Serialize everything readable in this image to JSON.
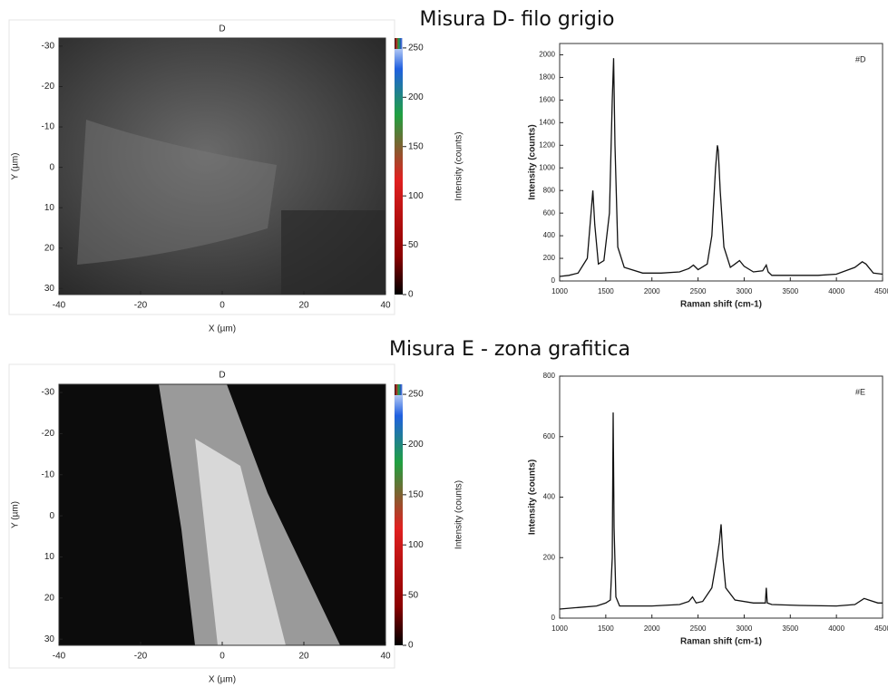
{
  "headings": [
    "Misura D- filo grigio",
    "Misura E - zona grafitica"
  ],
  "chart_data": [
    {
      "type": "image",
      "title": "D",
      "x_label": "X (µm)",
      "y_label": "Y (µm)",
      "colorbar_label": "Intensity (counts)",
      "xlim": [
        -40,
        40
      ],
      "xticks": [
        -40,
        -20,
        0,
        20,
        40
      ],
      "ylim": [
        -32,
        31.5
      ],
      "yticks": [
        -30,
        -20,
        -10,
        0,
        10,
        20,
        30
      ],
      "y_inverted": true,
      "clim": [
        0,
        260
      ],
      "cticks": [
        0,
        50,
        100,
        150,
        200,
        250
      ]
    },
    {
      "type": "line",
      "annotation": "#D",
      "x_label": "Raman shift (cm-1)",
      "y_label": "Intensity (counts)",
      "color": "#111111",
      "xlim": [
        1000,
        4500
      ],
      "xticks": [
        1000,
        1500,
        2000,
        2500,
        3000,
        3500,
        4000,
        4500
      ],
      "ylim": [
        0,
        2100
      ],
      "yticks": [
        0,
        200,
        400,
        600,
        800,
        1000,
        1200,
        1400,
        1600,
        1800,
        2000
      ],
      "x": [
        1000,
        1100,
        1200,
        1300,
        1340,
        1360,
        1380,
        1420,
        1480,
        1540,
        1570,
        1585,
        1600,
        1630,
        1700,
        1900,
        2100,
        2300,
        2400,
        2450,
        2500,
        2600,
        2650,
        2690,
        2710,
        2720,
        2740,
        2780,
        2850,
        2900,
        2950,
        3000,
        3100,
        3200,
        3240,
        3260,
        3300,
        3500,
        3800,
        4000,
        4200,
        4280,
        4320,
        4400,
        4500
      ],
      "values": [
        40,
        50,
        70,
        200,
        600,
        800,
        500,
        150,
        180,
        600,
        1600,
        1970,
        1200,
        300,
        120,
        70,
        70,
        80,
        110,
        140,
        100,
        150,
        400,
        1000,
        1200,
        1150,
        800,
        300,
        120,
        150,
        180,
        130,
        80,
        90,
        140,
        80,
        50,
        50,
        50,
        60,
        120,
        170,
        150,
        70,
        60
      ]
    },
    {
      "type": "image",
      "title": "D",
      "x_label": "X (µm)",
      "y_label": "Y (µm)",
      "colorbar_label": "Intensity (counts)",
      "xlim": [
        -40,
        40
      ],
      "xticks": [
        -40,
        -20,
        0,
        20,
        40
      ],
      "ylim": [
        -32,
        31.5
      ],
      "yticks": [
        -30,
        -20,
        -10,
        0,
        10,
        20,
        30
      ],
      "y_inverted": true,
      "clim": [
        0,
        260
      ],
      "cticks": [
        0,
        50,
        100,
        150,
        200,
        250
      ]
    },
    {
      "type": "line",
      "annotation": "#E",
      "x_label": "Raman shift (cm-1)",
      "y_label": "Intensity (counts)",
      "color": "#111111",
      "xlim": [
        1000,
        4500
      ],
      "xticks": [
        1000,
        1500,
        2000,
        2500,
        3000,
        3500,
        4000,
        4500
      ],
      "ylim": [
        0,
        800
      ],
      "yticks": [
        0,
        200,
        400,
        600,
        800
      ],
      "x": [
        1000,
        1200,
        1400,
        1500,
        1550,
        1570,
        1580,
        1590,
        1610,
        1650,
        1800,
        2000,
        2300,
        2400,
        2440,
        2480,
        2550,
        2650,
        2700,
        2730,
        2750,
        2770,
        2800,
        2900,
        3100,
        3230,
        3240,
        3250,
        3300,
        3600,
        4000,
        4200,
        4300,
        4350,
        4450,
        4500
      ],
      "values": [
        30,
        35,
        40,
        50,
        60,
        200,
        680,
        300,
        70,
        40,
        40,
        40,
        45,
        55,
        70,
        50,
        55,
        100,
        190,
        250,
        310,
        200,
        100,
        60,
        50,
        50,
        100,
        50,
        45,
        42,
        40,
        45,
        65,
        60,
        50,
        50
      ]
    }
  ]
}
